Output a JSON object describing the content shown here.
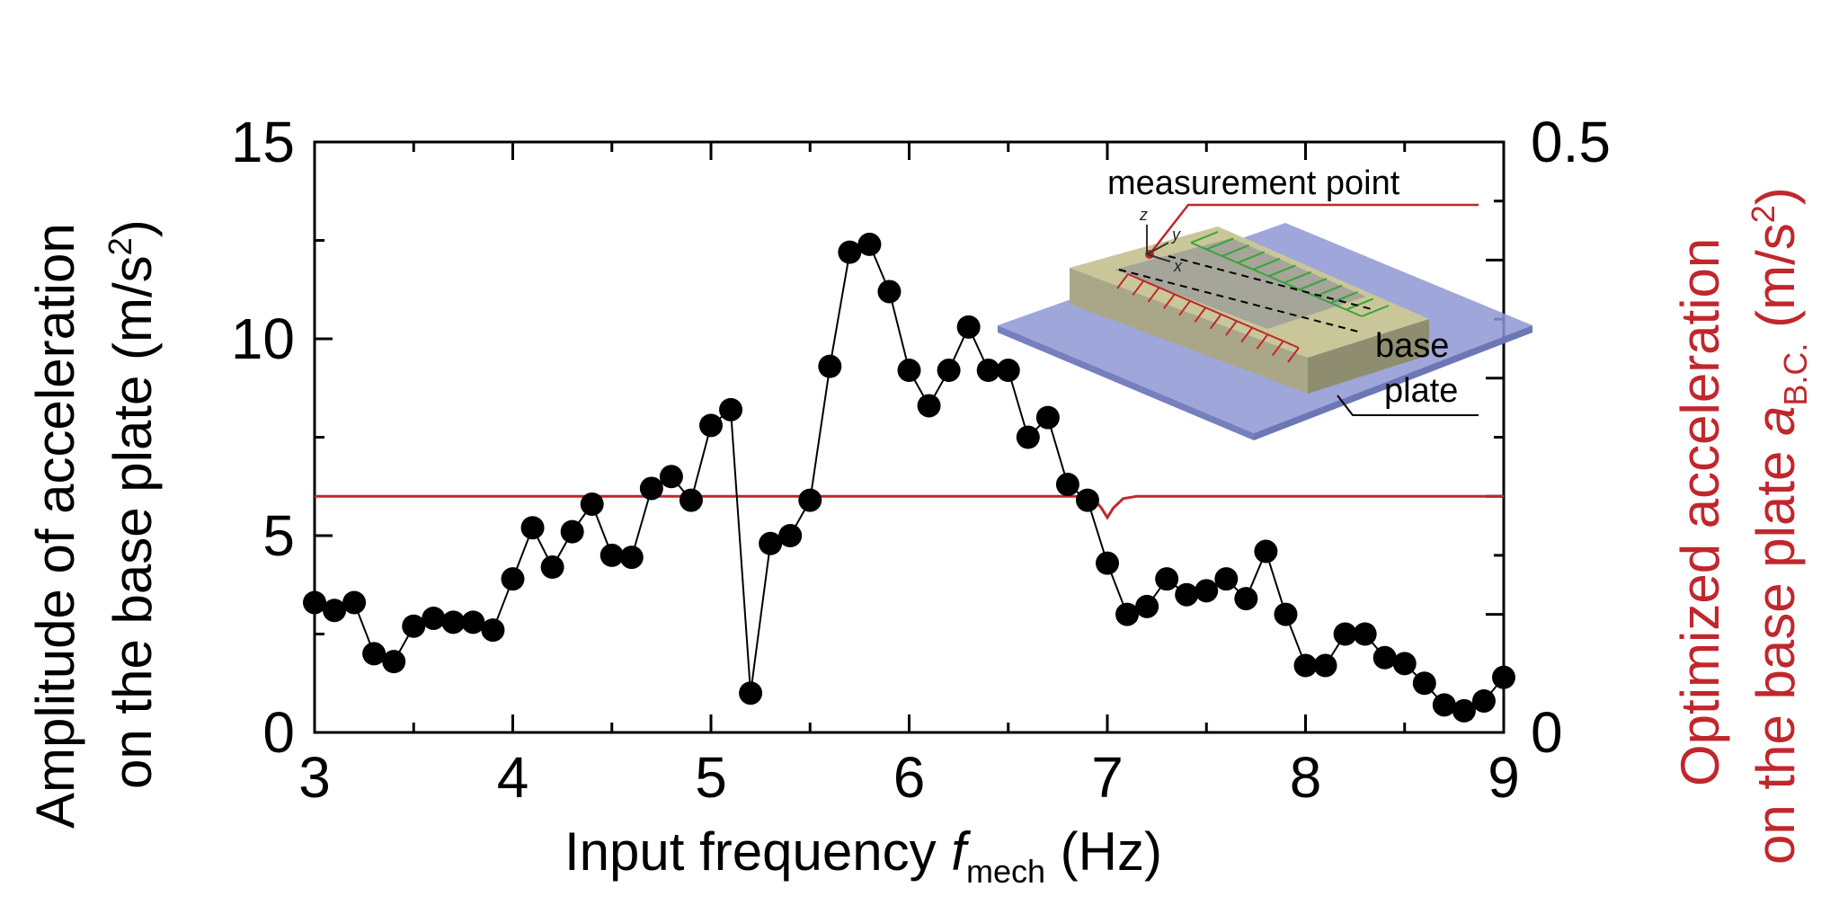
{
  "chart_data": {
    "type": "line",
    "x": [
      3.0,
      3.1,
      3.2,
      3.3,
      3.4,
      3.5,
      3.6,
      3.7,
      3.8,
      3.9,
      4.0,
      4.1,
      4.2,
      4.3,
      4.4,
      4.5,
      4.6,
      4.7,
      4.8,
      4.9,
      5.0,
      5.1,
      5.2,
      5.3,
      5.4,
      5.5,
      5.6,
      5.7,
      5.8,
      5.9,
      6.0,
      6.1,
      6.2,
      6.3,
      6.4,
      6.5,
      6.6,
      6.7,
      6.8,
      6.9,
      7.0,
      7.1,
      7.2,
      7.3,
      7.4,
      7.5,
      7.6,
      7.7,
      7.8,
      7.9,
      8.0,
      8.1,
      8.2,
      8.3,
      8.4,
      8.5,
      8.6,
      8.7,
      8.8,
      8.9,
      9.0
    ],
    "series": [
      {
        "name": "Amplitude of acceleration on the base plate",
        "axis": "left",
        "color": "#000000",
        "marker": "circle",
        "values": [
          3.3,
          3.1,
          3.3,
          2.0,
          1.8,
          2.7,
          2.9,
          2.8,
          2.8,
          2.6,
          3.9,
          5.2,
          4.2,
          5.1,
          5.8,
          4.5,
          4.45,
          6.2,
          6.5,
          5.9,
          7.8,
          8.2,
          1.0,
          4.8,
          5.0,
          5.9,
          9.3,
          12.2,
          12.4,
          11.2,
          9.2,
          8.3,
          9.2,
          10.3,
          9.2,
          9.2,
          7.5,
          8.0,
          6.3,
          5.9,
          4.3,
          3.0,
          3.2,
          3.9,
          3.5,
          3.6,
          3.9,
          3.4,
          4.6,
          3.0,
          1.7,
          1.7,
          2.5,
          2.5,
          1.9,
          1.75,
          1.25,
          0.7,
          0.55,
          0.8,
          1.4
        ]
      },
      {
        "name": "Optimized acceleration on the base plate",
        "axis": "right",
        "color": "#c0272d",
        "marker": "none",
        "x": [
          3.0,
          3.5,
          4.0,
          4.5,
          5.0,
          5.5,
          6.0,
          6.5,
          6.85,
          6.93,
          6.97,
          7.0,
          7.03,
          7.08,
          7.15,
          7.5,
          8.0,
          8.5,
          9.0
        ],
        "values": [
          0.2,
          0.2,
          0.2,
          0.2,
          0.2,
          0.2,
          0.2,
          0.2,
          0.2,
          0.198,
          0.19,
          0.182,
          0.19,
          0.198,
          0.2,
          0.2,
          0.2,
          0.2,
          0.2
        ]
      }
    ],
    "xlim": [
      3,
      9
    ],
    "ylim_left": [
      0,
      15
    ],
    "ylim_right": [
      0,
      0.5
    ],
    "x_ticks": [
      "3",
      "4",
      "5",
      "6",
      "7",
      "8",
      "9"
    ],
    "y_left_ticks": [
      "0",
      "5",
      "10",
      "15"
    ],
    "y_right_ticks": [
      "0",
      "0.5"
    ],
    "xlabel": {
      "main": "Input frequency ",
      "italic": "f",
      "sub": "mech",
      "tail": " (Hz)"
    },
    "ylabel_left": {
      "line1": "Amplitude of  acceleration",
      "line2_main": "on the base plate (m/s",
      "line2_sup": "2",
      "line2_tail": ")"
    },
    "ylabel_right": {
      "line1": "Optimized acceleration",
      "line2_main": "on the base plate ",
      "line2_italic": "a",
      "line2_sub": "B.C.",
      "line2_mid": "  (m/s",
      "line2_sup": "2",
      "line2_tail": ")"
    },
    "inset": {
      "measurement_label": "measurement point",
      "base_label_1": "base",
      "base_label_2": "plate",
      "axis_x": "x",
      "axis_y": "y",
      "axis_z": "z"
    },
    "grid": false,
    "colors": {
      "primary": "#000000",
      "secondary": "#c0272d",
      "plate": "#8e97d2"
    }
  }
}
